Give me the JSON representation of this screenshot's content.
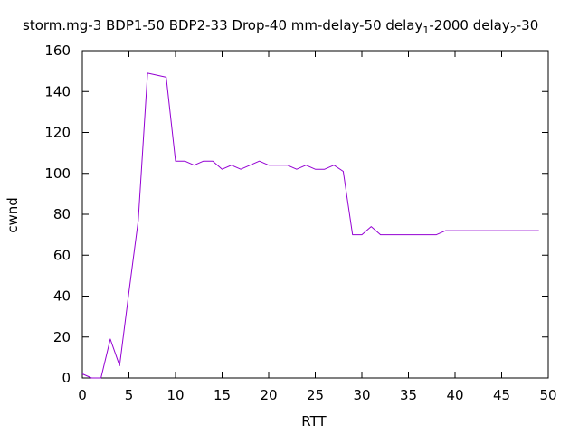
{
  "chart_data": {
    "type": "line",
    "title": {
      "main": "storm.mg-3 BDP1-50 BDP2-33 Drop-40 mm-delay-50 delay",
      "sub1": "1",
      "mid": "-2000 delay",
      "sub2": "2",
      "tail": "-30"
    },
    "xlabel": "RTT",
    "ylabel": "cwnd",
    "xlim": [
      0,
      50
    ],
    "ylim": [
      0,
      160
    ],
    "x_ticks": [
      0,
      5,
      10,
      15,
      20,
      25,
      30,
      35,
      40,
      45,
      50
    ],
    "y_ticks": [
      0,
      20,
      40,
      60,
      80,
      100,
      120,
      140,
      160
    ],
    "grid": false,
    "legend": "none",
    "series": [
      {
        "color": "#9400d3",
        "x": [
          0,
          1,
          2,
          3,
          4,
          5,
          6,
          7,
          8,
          9,
          10,
          11,
          12,
          13,
          14,
          15,
          16,
          17,
          18,
          19,
          20,
          21,
          22,
          23,
          24,
          25,
          26,
          27,
          28,
          29,
          30,
          31,
          32,
          33,
          34,
          35,
          36,
          37,
          38,
          39,
          40,
          41,
          42,
          43,
          44,
          45,
          46,
          47,
          48,
          49
        ],
        "y": [
          2,
          0,
          0,
          19,
          6,
          42,
          77,
          149,
          148,
          147,
          106,
          106,
          104,
          106,
          106,
          102,
          104,
          102,
          104,
          106,
          104,
          104,
          104,
          102,
          104,
          102,
          102,
          104,
          101,
          70,
          70,
          74,
          70,
          70,
          70,
          70,
          70,
          70,
          70,
          72,
          72,
          72,
          72,
          72,
          72,
          72,
          72,
          72,
          72,
          72
        ]
      }
    ]
  }
}
